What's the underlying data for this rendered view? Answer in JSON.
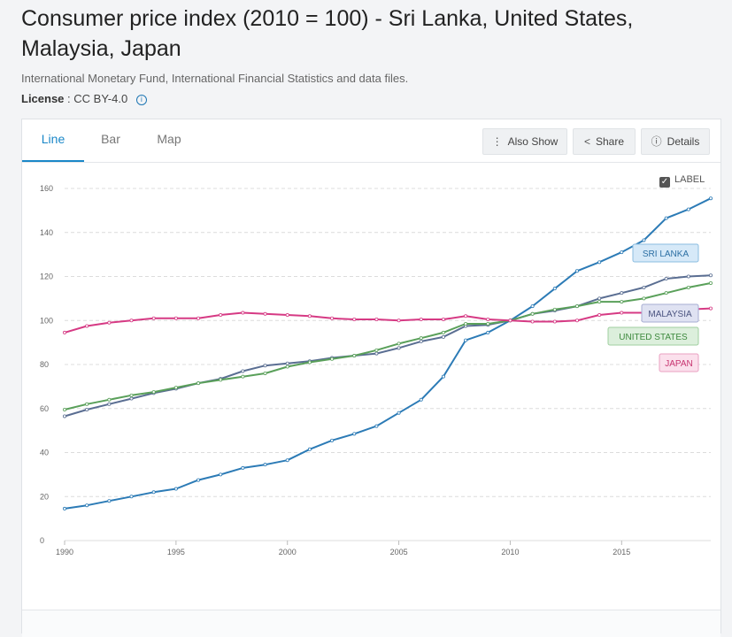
{
  "page": {
    "title": "Consumer price index (2010 = 100) - Sri Lanka, United States, Malaysia, Japan",
    "source": "International Monetary Fund, International Financial Statistics and data files.",
    "license_label": "License",
    "license_value": ": CC BY-4.0",
    "info_icon": "info-icon"
  },
  "tabs": [
    {
      "label": "Line",
      "active": true
    },
    {
      "label": "Bar",
      "active": false
    },
    {
      "label": "Map",
      "active": false
    }
  ],
  "toolbar": {
    "also_show": "Also Show",
    "share": "Share",
    "details": "Details",
    "icons": {
      "also_show": "vertical-dots-icon",
      "share": "share-icon",
      "details": "info-icon"
    }
  },
  "label_toggle": {
    "text": "LABEL",
    "checked": true
  },
  "chart_data": {
    "type": "line",
    "title": "",
    "xlabel": "",
    "ylabel": "",
    "xlim": [
      1990,
      2019
    ],
    "ylim": [
      0,
      160
    ],
    "x_ticks": [
      1990,
      1995,
      2000,
      2005,
      2010,
      2015
    ],
    "y_ticks": [
      0,
      20,
      40,
      60,
      80,
      100,
      120,
      140,
      160
    ],
    "grid": "horizontal dashed",
    "x": [
      1990,
      1991,
      1992,
      1993,
      1994,
      1995,
      1996,
      1997,
      1998,
      1999,
      2000,
      2001,
      2002,
      2003,
      2004,
      2005,
      2006,
      2007,
      2008,
      2009,
      2010,
      2011,
      2012,
      2013,
      2014,
      2015,
      2016,
      2017,
      2018,
      2019
    ],
    "series": [
      {
        "name": "SRI LANKA",
        "color": "#2c7bb6",
        "label_bg": "#d6e9f8",
        "label_border": "#8bbde0",
        "label_text_color": "#2c6fa3",
        "values": [
          14.5,
          16.0,
          18.0,
          20.0,
          22.0,
          23.5,
          27.5,
          30.0,
          33.0,
          34.5,
          36.5,
          41.5,
          45.5,
          48.5,
          52.0,
          58.0,
          64.0,
          74.5,
          91.0,
          94.5,
          100.0,
          106.5,
          114.5,
          122.5,
          126.5,
          131.0,
          136.5,
          146.5,
          150.5,
          155.5
        ]
      },
      {
        "name": "MALAYSIA",
        "color": "#5a6e92",
        "label_bg": "#dfe2f2",
        "label_border": "#a7aed3",
        "label_text_color": "#4b5480",
        "values": [
          56.5,
          59.5,
          62.0,
          64.5,
          67.0,
          69.0,
          71.5,
          73.5,
          77.0,
          79.5,
          80.5,
          81.5,
          83.0,
          84.0,
          85.0,
          87.5,
          90.5,
          92.5,
          97.5,
          98.0,
          100.0,
          103.0,
          104.5,
          106.5,
          110.0,
          112.5,
          115.0,
          119.0,
          120.0,
          120.5
        ]
      },
      {
        "name": "UNITED STATES",
        "color": "#5aa05a",
        "label_bg": "#dcefdc",
        "label_border": "#9fcf9f",
        "label_text_color": "#3e8a3e",
        "values": [
          59.5,
          62.0,
          64.0,
          66.0,
          67.5,
          69.5,
          71.5,
          73.0,
          74.5,
          76.0,
          79.0,
          81.0,
          82.5,
          84.0,
          86.5,
          89.5,
          92.0,
          94.5,
          98.5,
          98.5,
          100.0,
          103.0,
          105.0,
          106.5,
          108.5,
          108.5,
          110.0,
          112.5,
          115.0,
          117.0
        ]
      },
      {
        "name": "JAPAN",
        "color": "#d63a84",
        "label_bg": "#fbe0ec",
        "label_border": "#eaa1c2",
        "label_text_color": "#c7336f",
        "values": [
          94.5,
          97.5,
          99.0,
          100.0,
          101.0,
          101.0,
          101.0,
          102.5,
          103.5,
          103.0,
          102.5,
          102.0,
          101.0,
          100.5,
          100.5,
          100.0,
          100.5,
          100.5,
          102.0,
          100.5,
          100.0,
          99.5,
          99.5,
          100.0,
          102.5,
          103.5,
          103.5,
          104.0,
          105.0,
          105.5
        ]
      }
    ]
  }
}
